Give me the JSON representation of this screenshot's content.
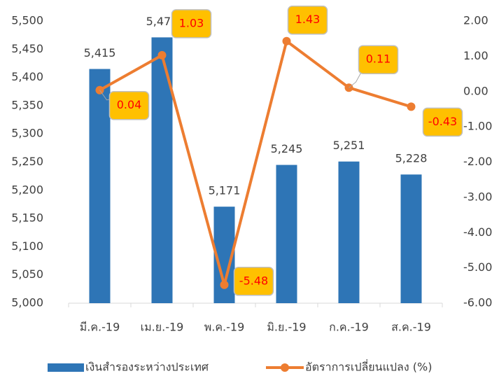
{
  "chart_data": {
    "type": "bar_line",
    "categories": [
      "มี.ค.-19",
      "เม.ย.-19",
      "พ.ค.-19",
      "มิ.ย.-19",
      "ก.ค.-19",
      "ส.ค.-19"
    ],
    "series": [
      {
        "name": "เงินสำรองระหว่างประเทศ",
        "color": "#2e75b6",
        "type": "bar",
        "values": [
          5415,
          5471,
          5171,
          5245,
          5251,
          5228
        ],
        "value_labels": [
          "5,415",
          "5,471",
          "5,171",
          "5,245",
          "5,251",
          "5,228"
        ]
      },
      {
        "name": "อัตราการเปลี่ยนแปลง (%)",
        "color": "#ed7d31",
        "type": "line",
        "axis": "y2",
        "values": [
          0.04,
          1.03,
          -5.48,
          1.43,
          0.11,
          -0.43
        ]
      }
    ],
    "ylim": [
      5000,
      5500
    ],
    "yticks": [
      {
        "value": 5000,
        "label": "5,000"
      },
      {
        "value": 5050,
        "label": "5,050"
      },
      {
        "value": 5100,
        "label": "5,100"
      },
      {
        "value": 5150,
        "label": "5,150"
      },
      {
        "value": 5200,
        "label": "5,200"
      },
      {
        "value": 5250,
        "label": "5,250"
      },
      {
        "value": 5300,
        "label": "5,300"
      },
      {
        "value": 5350,
        "label": "5,350"
      },
      {
        "value": 5400,
        "label": "5,400"
      },
      {
        "value": 5450,
        "label": "5,450"
      },
      {
        "value": 5500,
        "label": "5,500"
      }
    ],
    "y2lim": [
      -6,
      2
    ],
    "y2ticks": [
      {
        "value": -6,
        "label": "-6.00"
      },
      {
        "value": -5,
        "label": "-5.00"
      },
      {
        "value": -4,
        "label": "-4.00"
      },
      {
        "value": -3,
        "label": "-3.00"
      },
      {
        "value": -2,
        "label": "-2.00"
      },
      {
        "value": -1,
        "label": "-1.00"
      },
      {
        "value": 0,
        "label": "0.00"
      },
      {
        "value": 1,
        "label": "1.00"
      },
      {
        "value": 2,
        "label": "2.00"
      }
    ],
    "grid": false,
    "legend": "bottom"
  }
}
